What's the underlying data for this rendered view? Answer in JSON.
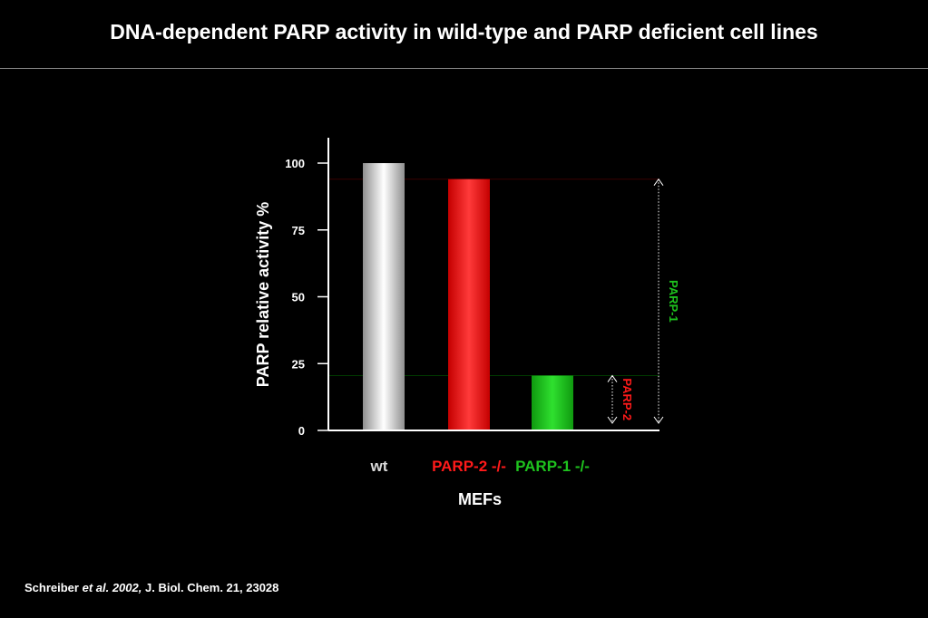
{
  "slide": {
    "title": "DNA-dependent PARP activity in wild-type and PARP deficient cell lines"
  },
  "citation": {
    "author": "Schreiber ",
    "etal": "et al. 2002,",
    "journal": " J. Biol. Chem. 21, 23028"
  },
  "chart_data": {
    "type": "bar",
    "categories": [
      "wt",
      "PARP-2 -/-",
      "PARP-1 -/-"
    ],
    "values": [
      100,
      94,
      20.5
    ],
    "category_colors": [
      "#d9d9d9",
      "#ff1a1a",
      "#1ec21e"
    ],
    "ylabel": "PARP relative  activity %",
    "xlabel": "MEFs",
    "ylim": [
      0,
      110
    ],
    "yticks": [
      0,
      25,
      50,
      75,
      100
    ],
    "grid": false,
    "annotations": [
      {
        "label": "PARP-1",
        "color": "#1ec21e",
        "from": 0,
        "to": 94
      },
      {
        "label": "PARP-2",
        "color": "#ff1a1a",
        "from": 0,
        "to": 20.5
      }
    ]
  }
}
